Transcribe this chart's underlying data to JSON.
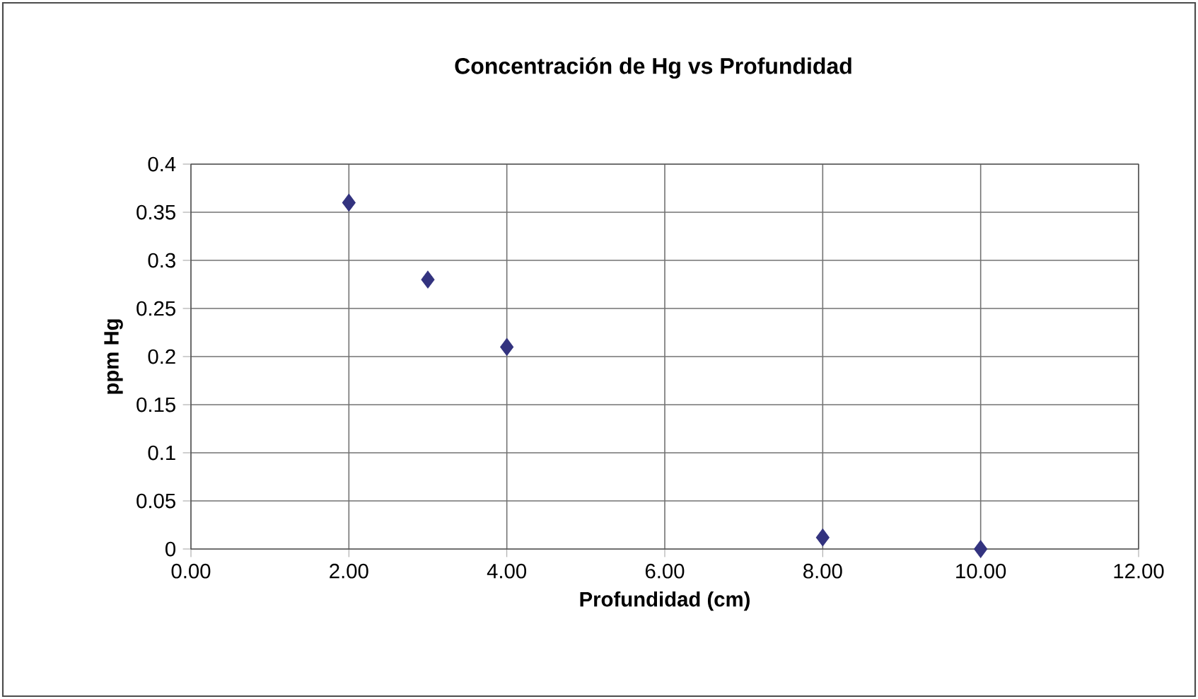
{
  "chart_data": {
    "type": "scatter",
    "title": "Concentración de Hg vs Profundidad",
    "xlabel": "Profundidad (cm)",
    "ylabel": "ppm Hg",
    "x": [
      2,
      3,
      4,
      8,
      10
    ],
    "values": [
      0.36,
      0.28,
      0.21,
      0.012,
      0
    ],
    "color": "#33337f",
    "marker": "diamond",
    "xlim": [
      0,
      12
    ],
    "xticks": [
      {
        "value": 0,
        "label": "0.00"
      },
      {
        "value": 2,
        "label": "2.00"
      },
      {
        "value": 4,
        "label": "4.00"
      },
      {
        "value": 6,
        "label": "6.00"
      },
      {
        "value": 8,
        "label": "8.00"
      },
      {
        "value": 10,
        "label": "10.00"
      },
      {
        "value": 12,
        "label": "12.00"
      }
    ],
    "ylim": [
      0,
      0.4
    ],
    "yticks": [
      0,
      0.05,
      0.1,
      0.15,
      0.2,
      0.25,
      0.3,
      0.35,
      0.4
    ],
    "grid": true
  }
}
